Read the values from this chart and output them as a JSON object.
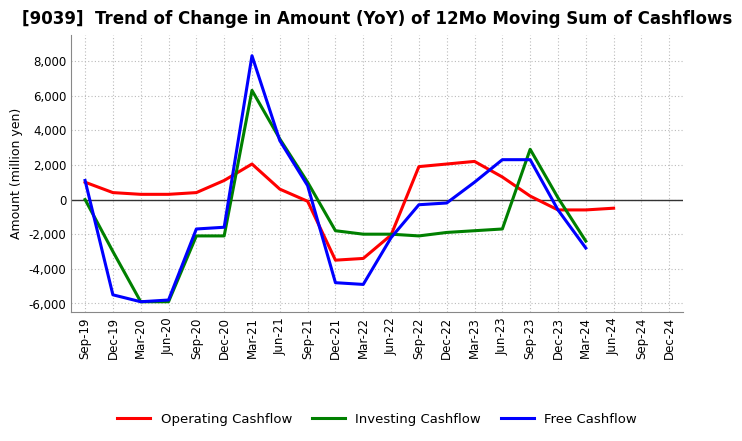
{
  "title": "[9039]  Trend of Change in Amount (YoY) of 12Mo Moving Sum of Cashflows",
  "ylabel": "Amount (million yen)",
  "x_labels": [
    "Sep-19",
    "Dec-19",
    "Mar-20",
    "Jun-20",
    "Sep-20",
    "Dec-20",
    "Mar-21",
    "Jun-21",
    "Sep-21",
    "Dec-21",
    "Mar-22",
    "Jun-22",
    "Sep-22",
    "Dec-22",
    "Mar-23",
    "Jun-23",
    "Sep-23",
    "Dec-23",
    "Mar-24",
    "Jun-24",
    "Sep-24",
    "Dec-24"
  ],
  "operating": [
    1000,
    400,
    300,
    300,
    400,
    1100,
    2050,
    600,
    -100,
    -3500,
    -3400,
    -2050,
    1900,
    2050,
    2200,
    1300,
    200,
    -600,
    -600,
    -500,
    null,
    null
  ],
  "investing": [
    0,
    -3000,
    -5900,
    -5900,
    -2100,
    -2100,
    6300,
    3500,
    1000,
    -1800,
    -2000,
    -2000,
    -2100,
    -1900,
    -1800,
    -1700,
    2900,
    100,
    -2400,
    null,
    null,
    null
  ],
  "free": [
    1100,
    -5500,
    -5900,
    -5800,
    -1700,
    -1600,
    8300,
    3400,
    800,
    -4800,
    -4900,
    -2200,
    -300,
    -200,
    1000,
    2300,
    2300,
    -600,
    -2800,
    null,
    null,
    null
  ],
  "operating_color": "#ff0000",
  "investing_color": "#008000",
  "free_color": "#0000ff",
  "ylim": [
    -6500,
    9500
  ],
  "yticks": [
    -6000,
    -4000,
    -2000,
    0,
    2000,
    4000,
    6000,
    8000
  ],
  "background_color": "#ffffff",
  "grid_color": "#bbbbbb",
  "legend_labels": [
    "Operating Cashflow",
    "Investing Cashflow",
    "Free Cashflow"
  ],
  "title_fontsize": 12,
  "axis_fontsize": 9,
  "tick_fontsize": 8.5,
  "linewidth": 2.2
}
